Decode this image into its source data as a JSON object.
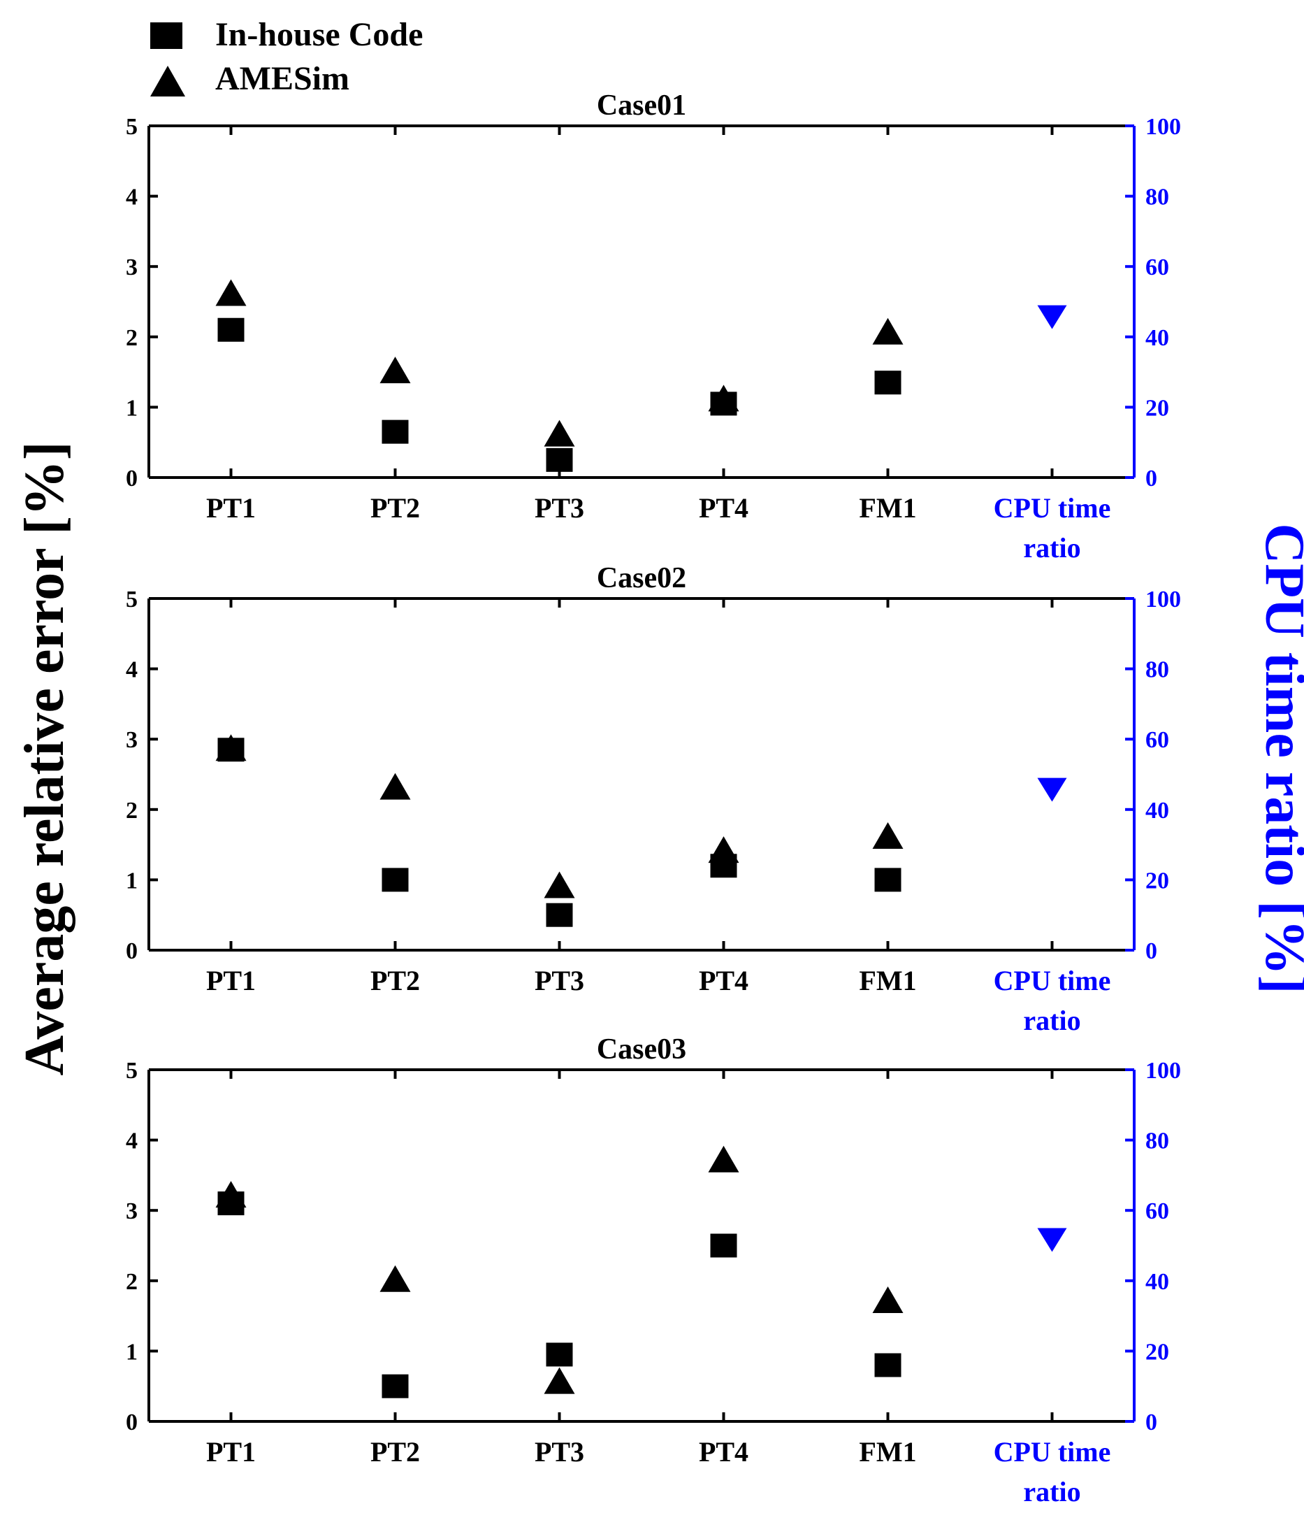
{
  "legend": {
    "items": [
      {
        "label": "In-house Code",
        "marker": "square",
        "color": "#000000"
      },
      {
        "label": "AMESim",
        "marker": "triangle-up",
        "color": "#000000"
      }
    ]
  },
  "y_left_label": "Average relative error [%]",
  "y_right_label": "CPU time ratio [%]",
  "colors": {
    "primary": "#000000",
    "cpu": "#0000ff"
  },
  "chart_data": [
    {
      "type": "scatter",
      "title": "Case01",
      "categories": [
        "PT1",
        "PT2",
        "PT3",
        "PT4",
        "FM1"
      ],
      "cpu_category": [
        "CPU time",
        "ratio"
      ],
      "ylim_left": [
        0,
        5
      ],
      "yticks_left": [
        0,
        1,
        2,
        3,
        4,
        5
      ],
      "ylim_right": [
        0,
        100
      ],
      "yticks_right": [
        0,
        20,
        40,
        60,
        80,
        100
      ],
      "series": [
        {
          "name": "In-house Code",
          "marker": "square",
          "values": [
            2.1,
            0.65,
            0.25,
            1.05,
            1.35
          ]
        },
        {
          "name": "AMESim",
          "marker": "triangle-up",
          "values": [
            2.6,
            1.5,
            0.6,
            1.1,
            2.05
          ]
        }
      ],
      "cpu_time_ratio": 46
    },
    {
      "type": "scatter",
      "title": "Case02",
      "categories": [
        "PT1",
        "PT2",
        "PT3",
        "PT4",
        "FM1"
      ],
      "cpu_category": [
        "CPU time",
        "ratio"
      ],
      "ylim_left": [
        0,
        5
      ],
      "yticks_left": [
        0,
        1,
        2,
        3,
        4,
        5
      ],
      "ylim_right": [
        0,
        100
      ],
      "yticks_right": [
        0,
        20,
        40,
        60,
        80,
        100
      ],
      "series": [
        {
          "name": "In-house Code",
          "marker": "square",
          "values": [
            2.85,
            1.0,
            0.5,
            1.2,
            1.0
          ]
        },
        {
          "name": "AMESim",
          "marker": "triangle-up",
          "values": [
            2.85,
            2.3,
            0.9,
            1.4,
            1.6
          ]
        }
      ],
      "cpu_time_ratio": 46
    },
    {
      "type": "scatter",
      "title": "Case03",
      "categories": [
        "PT1",
        "PT2",
        "PT3",
        "PT4",
        "FM1"
      ],
      "cpu_category": [
        "CPU time",
        "ratio"
      ],
      "ylim_left": [
        0,
        5
      ],
      "yticks_left": [
        0,
        1,
        2,
        3,
        4,
        5
      ],
      "ylim_right": [
        0,
        100
      ],
      "yticks_right": [
        0,
        20,
        40,
        60,
        80,
        100
      ],
      "series": [
        {
          "name": "In-house Code",
          "marker": "square",
          "values": [
            3.1,
            0.5,
            0.95,
            2.5,
            0.8
          ]
        },
        {
          "name": "AMESim",
          "marker": "triangle-up",
          "values": [
            3.2,
            2.0,
            0.55,
            3.7,
            1.7
          ]
        }
      ],
      "cpu_time_ratio": 52
    }
  ]
}
